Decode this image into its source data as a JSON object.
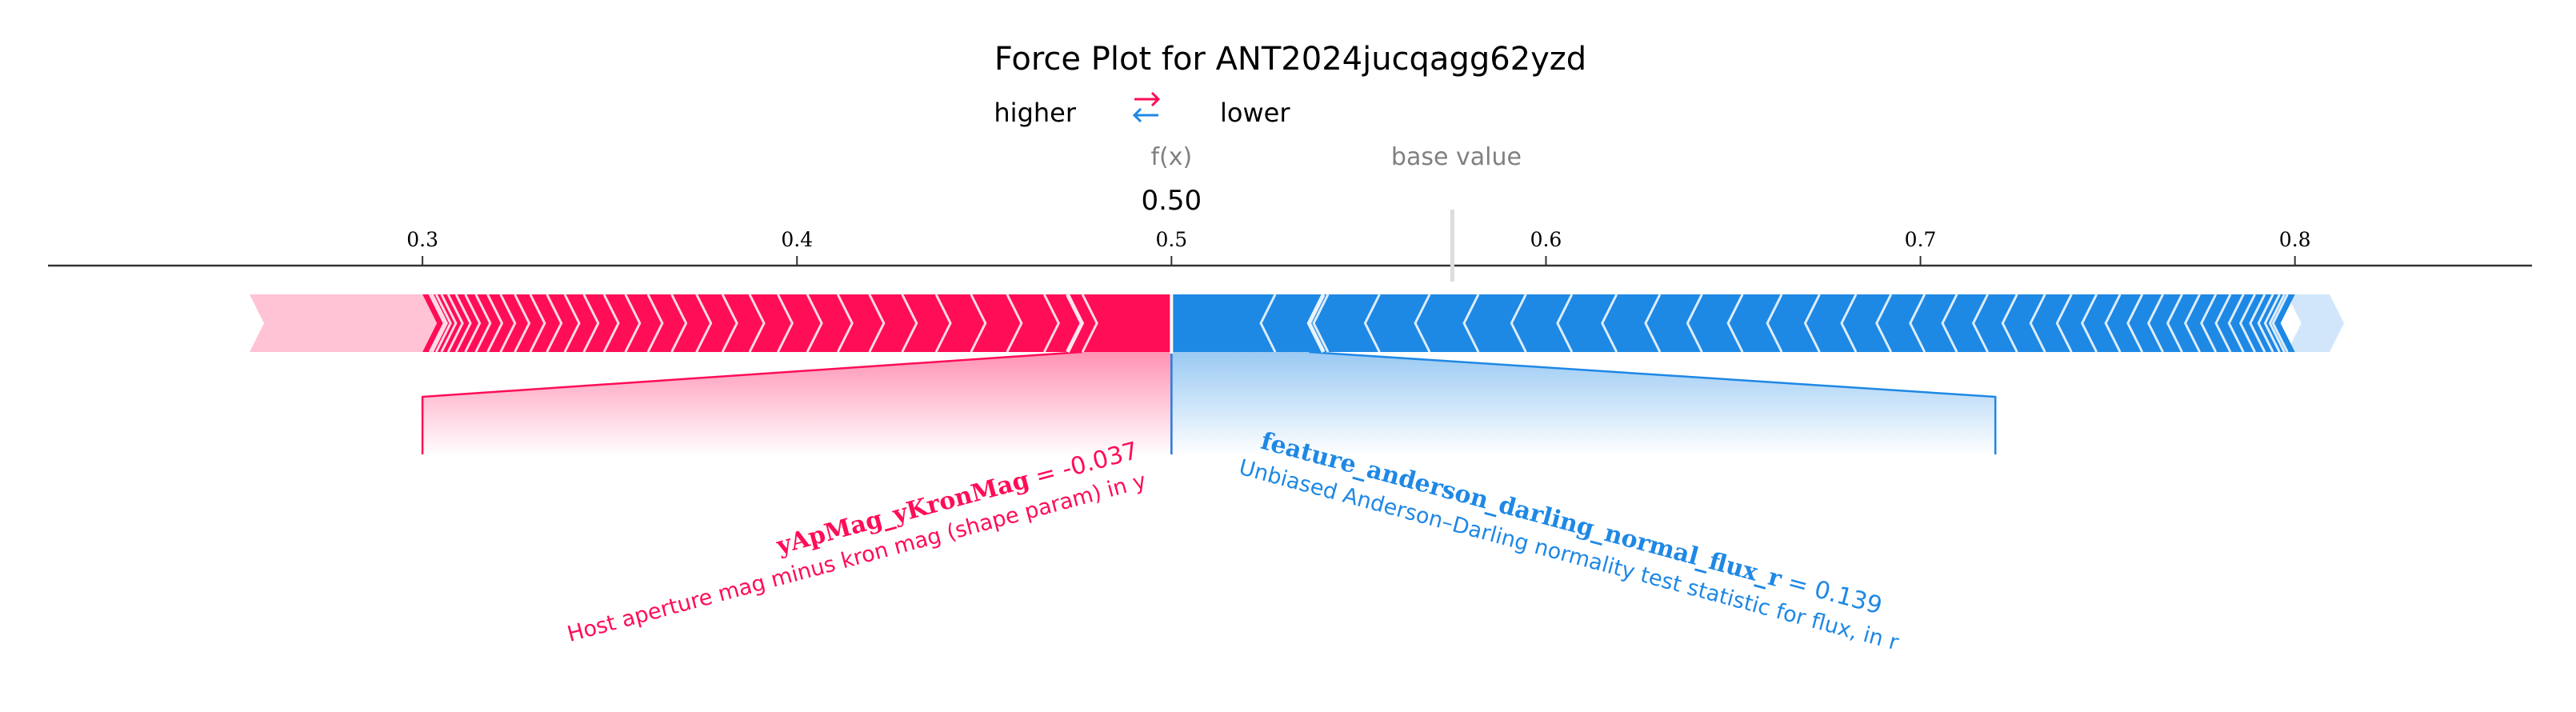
{
  "chart_data": {
    "type": "force_plot",
    "title": "Force Plot for ANT2024jucqagg62yzd",
    "legend": {
      "higher_label": "higher",
      "lower_label": "lower",
      "arrows_glyph": "⇄"
    },
    "fx_label": "f(x)",
    "fx_value": 0.5,
    "fx_value_text": "0.50",
    "base_value_label": "base value",
    "base_value": 0.575,
    "xlim": [
      0.2,
      0.8633
    ],
    "ticks": [
      0.3,
      0.4,
      0.5,
      0.6,
      0.7,
      0.8
    ],
    "tick_labels": [
      "0.3",
      "0.4",
      "0.5",
      "0.6",
      "0.7",
      "0.8"
    ],
    "red_segment": [
      0.3,
      0.5
    ],
    "blue_segment": [
      0.5,
      0.8
    ],
    "features": [
      {
        "direction": "positive",
        "name": "yApMag_yKronMag",
        "value_text": "= -0.037",
        "description": "Host aperture mag minus kron mag (shape param) in y",
        "pull_to": 0.3
      },
      {
        "direction": "negative",
        "name": "feature_anderson_darling_normal_flux_r",
        "value_text": "= 0.139",
        "description": "Unbiased Anderson–Darling normality test statistic for flux, in r",
        "pull_to": 0.72
      }
    ],
    "colors": {
      "positive": "#ff0d57",
      "positive_light": "#ffc3d5",
      "negative": "#1e88e5",
      "negative_light": "#d1e6fa",
      "axis": "#333333",
      "muted": "#808080"
    }
  }
}
